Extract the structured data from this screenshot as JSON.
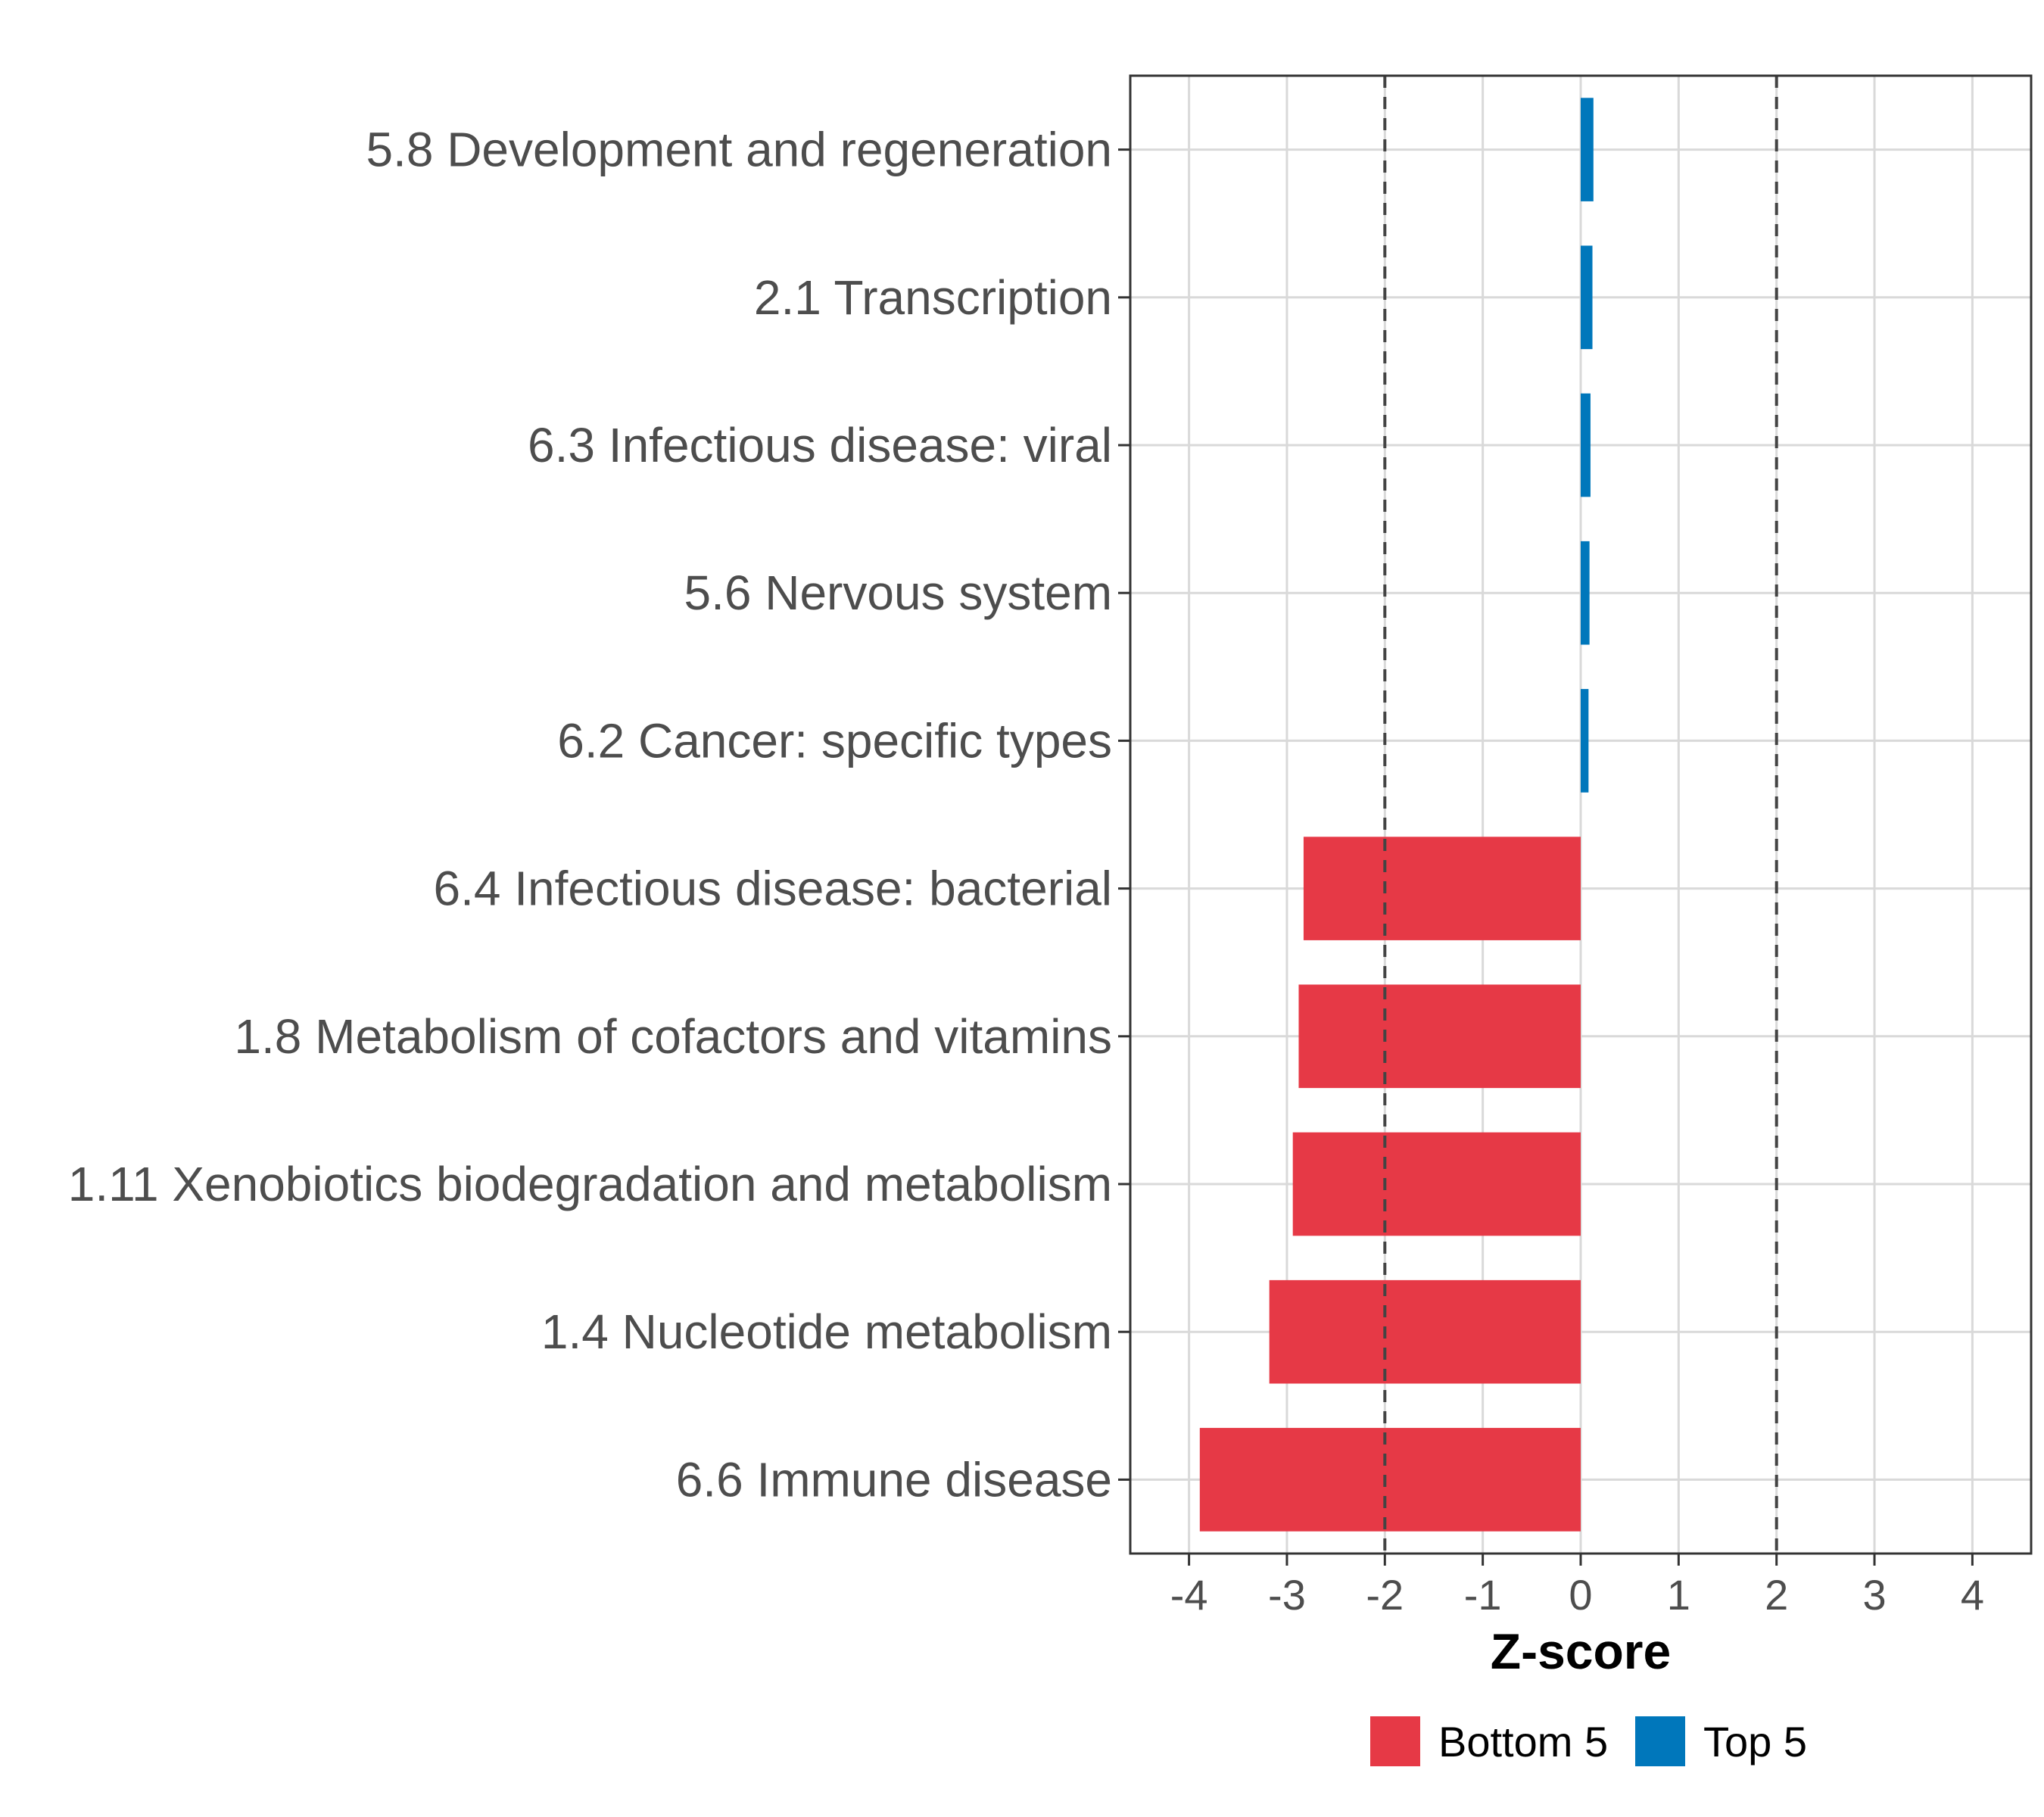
{
  "chart_data": {
    "type": "bar",
    "orientation": "horizontal",
    "title": "",
    "xlabel": "Z-score",
    "ylabel": "",
    "xlim": [
      -4.6,
      4.6
    ],
    "xticks": [
      -4,
      -3,
      -2,
      -1,
      0,
      1,
      2,
      3,
      4
    ],
    "reference_lines": [
      -2,
      2
    ],
    "grid": true,
    "legend_position": "bottom",
    "categories": [
      "5.8 Development and regeneration",
      "2.1 Transcription",
      "6.3 Infectious disease: viral",
      "5.6 Nervous system",
      "6.2 Cancer: specific types",
      "6.4 Infectious disease: bacterial",
      "1.8 Metabolism of cofactors and vitamins",
      "1.11 Xenobiotics biodegradation and metabolism",
      "1.4 Nucleotide metabolism",
      "6.6 Immune disease"
    ],
    "values": [
      0.13,
      0.12,
      0.1,
      0.09,
      0.08,
      -2.83,
      -2.88,
      -2.94,
      -3.18,
      -3.89
    ],
    "groups": [
      "Top 5",
      "Top 5",
      "Top 5",
      "Top 5",
      "Top 5",
      "Bottom 5",
      "Bottom 5",
      "Bottom 5",
      "Bottom 5",
      "Bottom 5"
    ],
    "legend": [
      {
        "name": "Bottom 5",
        "color": "#E63946"
      },
      {
        "name": "Top 5",
        "color": "#0077BB"
      }
    ]
  }
}
